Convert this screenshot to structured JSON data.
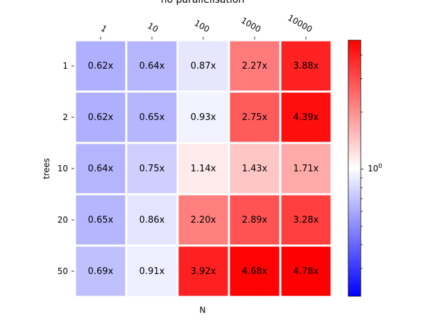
{
  "chart_data": {
    "type": "heatmap",
    "title": "no parallelisation",
    "xlabel": "N",
    "ylabel": "trees",
    "x_categories": [
      "1",
      "10",
      "100",
      "1000",
      "10000"
    ],
    "y_categories": [
      "1",
      "2",
      "10",
      "20",
      "50"
    ],
    "values": [
      [
        0.62,
        0.64,
        0.87,
        2.27,
        3.88
      ],
      [
        0.62,
        0.65,
        0.93,
        2.75,
        4.39
      ],
      [
        0.64,
        0.75,
        1.14,
        1.43,
        1.71
      ],
      [
        0.65,
        0.86,
        2.2,
        2.89,
        3.28
      ],
      [
        0.69,
        0.91,
        3.92,
        4.68,
        4.78
      ]
    ],
    "value_suffix": "x",
    "colormap": {
      "name": "bwr",
      "low": "#0000ff",
      "mid": "#ffffff",
      "high": "#ff0000"
    },
    "color_scale": "log",
    "color_range": [
      0.214,
      4.78
    ],
    "colorbar": {
      "label_base": "10",
      "label_exp": "0",
      "label_value": 1
    },
    "grid": false
  }
}
